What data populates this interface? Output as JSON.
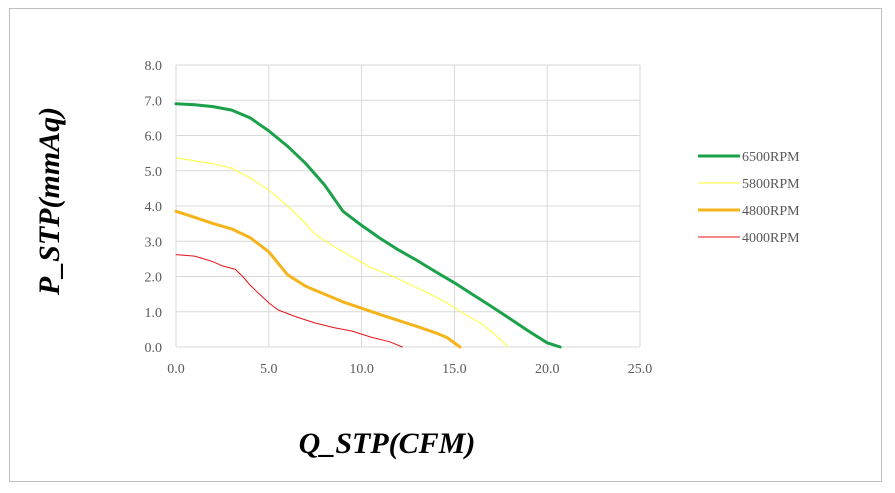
{
  "chart_data": {
    "type": "line",
    "xlabel": "Q_STP(CFM)",
    "ylabel": "P_STP(mmAq)",
    "xlim": [
      0,
      25
    ],
    "ylim": [
      0,
      8
    ],
    "xticks": [
      "0.0",
      "5.0",
      "10.0",
      "15.0",
      "20.0",
      "25.0"
    ],
    "yticks": [
      "0.0",
      "1.0",
      "2.0",
      "3.0",
      "4.0",
      "5.0",
      "6.0",
      "7.0",
      "8.0"
    ],
    "grid": true,
    "legend_position": "right",
    "series": [
      {
        "name": "6500RPM",
        "color": "#1aa14a",
        "width": 3,
        "points": [
          [
            0,
            6.9
          ],
          [
            1,
            6.87
          ],
          [
            2,
            6.82
          ],
          [
            3,
            6.72
          ],
          [
            4,
            6.5
          ],
          [
            5,
            6.13
          ],
          [
            6,
            5.7
          ],
          [
            7,
            5.2
          ],
          [
            8,
            4.6
          ],
          [
            9,
            3.85
          ],
          [
            10,
            3.45
          ],
          [
            11,
            3.08
          ],
          [
            12,
            2.75
          ],
          [
            13,
            2.45
          ],
          [
            14,
            2.13
          ],
          [
            15,
            1.82
          ],
          [
            16,
            1.48
          ],
          [
            17,
            1.15
          ],
          [
            18,
            0.8
          ],
          [
            19,
            0.45
          ],
          [
            20,
            0.12
          ],
          [
            20.7,
            0.0
          ]
        ]
      },
      {
        "name": "5800RPM",
        "color": "#ffff33",
        "width": 1,
        "points": [
          [
            0,
            5.37
          ],
          [
            1,
            5.28
          ],
          [
            2,
            5.2
          ],
          [
            3,
            5.07
          ],
          [
            4,
            4.8
          ],
          [
            5,
            4.45
          ],
          [
            6,
            4.0
          ],
          [
            6.8,
            3.6
          ],
          [
            7.5,
            3.2
          ],
          [
            8.5,
            2.85
          ],
          [
            9.5,
            2.55
          ],
          [
            10.5,
            2.25
          ],
          [
            11.5,
            2.05
          ],
          [
            12.5,
            1.8
          ],
          [
            13.5,
            1.55
          ],
          [
            14.5,
            1.28
          ],
          [
            15.5,
            0.95
          ],
          [
            16.5,
            0.65
          ],
          [
            17.3,
            0.3
          ],
          [
            17.9,
            0.0
          ]
        ]
      },
      {
        "name": "4800RPM",
        "color": "#f5b41a",
        "width": 3,
        "points": [
          [
            0,
            3.85
          ],
          [
            1,
            3.68
          ],
          [
            2,
            3.5
          ],
          [
            3,
            3.35
          ],
          [
            4,
            3.1
          ],
          [
            5,
            2.7
          ],
          [
            6,
            2.05
          ],
          [
            7,
            1.72
          ],
          [
            8,
            1.5
          ],
          [
            9,
            1.28
          ],
          [
            10,
            1.1
          ],
          [
            11,
            0.92
          ],
          [
            12,
            0.75
          ],
          [
            13,
            0.58
          ],
          [
            14,
            0.4
          ],
          [
            14.6,
            0.27
          ],
          [
            15.3,
            0.0
          ]
        ]
      },
      {
        "name": "4000RPM",
        "color": "#e8121b",
        "width": 1,
        "points": [
          [
            0,
            2.62
          ],
          [
            1,
            2.58
          ],
          [
            1.5,
            2.5
          ],
          [
            2,
            2.42
          ],
          [
            2.5,
            2.3
          ],
          [
            3.2,
            2.2
          ],
          [
            3.6,
            2.0
          ],
          [
            4,
            1.75
          ],
          [
            4.5,
            1.5
          ],
          [
            5,
            1.25
          ],
          [
            5.5,
            1.05
          ],
          [
            6.5,
            0.85
          ],
          [
            7.5,
            0.68
          ],
          [
            8.5,
            0.55
          ],
          [
            9.5,
            0.45
          ],
          [
            10.5,
            0.28
          ],
          [
            11.5,
            0.15
          ],
          [
            12.2,
            0.0
          ]
        ]
      }
    ]
  }
}
